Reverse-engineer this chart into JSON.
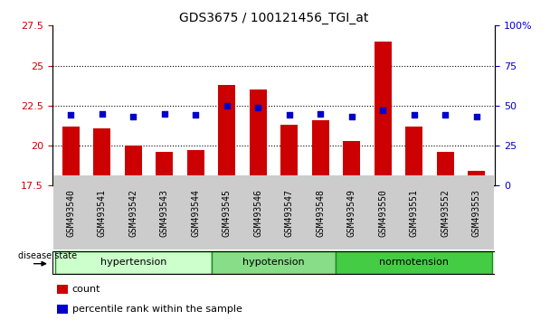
{
  "title": "GDS3675 / 100121456_TGI_at",
  "samples": [
    "GSM493540",
    "GSM493541",
    "GSM493542",
    "GSM493543",
    "GSM493544",
    "GSM493545",
    "GSM493546",
    "GSM493547",
    "GSM493548",
    "GSM493549",
    "GSM493550",
    "GSM493551",
    "GSM493552",
    "GSM493553"
  ],
  "count_values": [
    21.2,
    21.1,
    20.0,
    19.6,
    19.7,
    23.8,
    23.5,
    21.3,
    21.6,
    20.3,
    26.5,
    21.2,
    19.6,
    18.4
  ],
  "percentile_values": [
    44,
    45,
    43,
    45,
    44,
    50,
    49,
    44,
    45,
    43,
    47,
    44,
    44,
    43
  ],
  "ylim_left": [
    17.5,
    27.5
  ],
  "ylim_right": [
    0,
    100
  ],
  "yticks_left": [
    17.5,
    20.0,
    22.5,
    25.0,
    27.5
  ],
  "ytick_labels_left": [
    "17.5",
    "20",
    "22.5",
    "25",
    "27.5"
  ],
  "yticks_right": [
    0,
    25,
    50,
    75,
    100
  ],
  "ytick_labels_right": [
    "0",
    "25",
    "50",
    "75",
    "100%"
  ],
  "bar_color": "#cc0000",
  "dot_color": "#0000cc",
  "bar_bottom": 17.5,
  "groups": [
    {
      "label": "hypertension",
      "start": 0,
      "end": 5,
      "color": "#ccffcc"
    },
    {
      "label": "hypotension",
      "start": 5,
      "end": 9,
      "color": "#88dd88"
    },
    {
      "label": "normotension",
      "start": 9,
      "end": 14,
      "color": "#44cc44"
    }
  ],
  "group_sep_color": "#228822",
  "tick_bg_color": "#cccccc",
  "legend_items": [
    {
      "color": "#cc0000",
      "label": "count"
    },
    {
      "color": "#0000cc",
      "label": "percentile rank within the sample"
    }
  ]
}
